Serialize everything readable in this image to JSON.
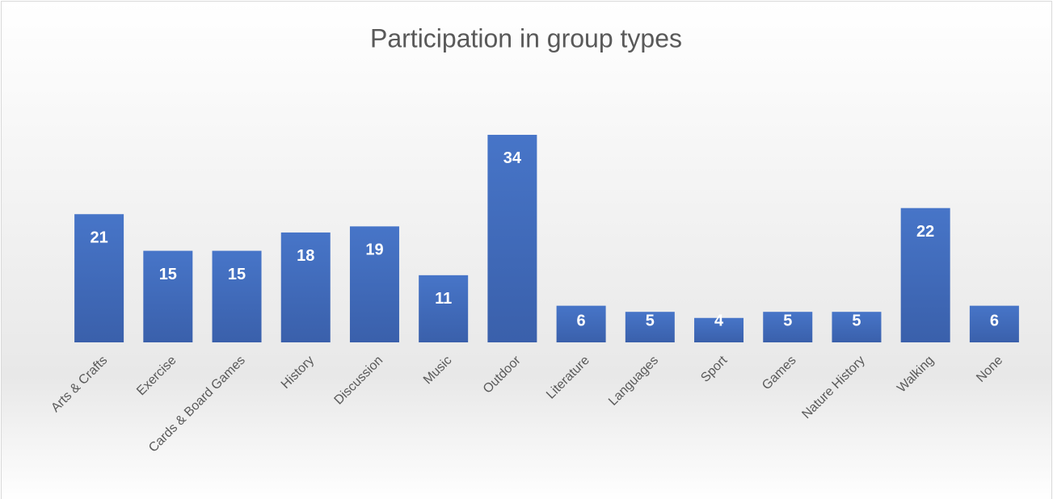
{
  "chart_data": {
    "type": "bar",
    "title": "Participation in group types",
    "categories": [
      "Arts & Crafts",
      "Exercise",
      "Cards & Board Games",
      "History",
      "Discussion",
      "Music",
      "Outdoor",
      "Literature",
      "Languages",
      "Sport",
      "Games",
      "Nature History",
      "Walking",
      "None"
    ],
    "values": [
      21,
      15,
      15,
      18,
      19,
      11,
      34,
      6,
      5,
      4,
      5,
      5,
      22,
      6
    ],
    "color": "#4472c4"
  }
}
